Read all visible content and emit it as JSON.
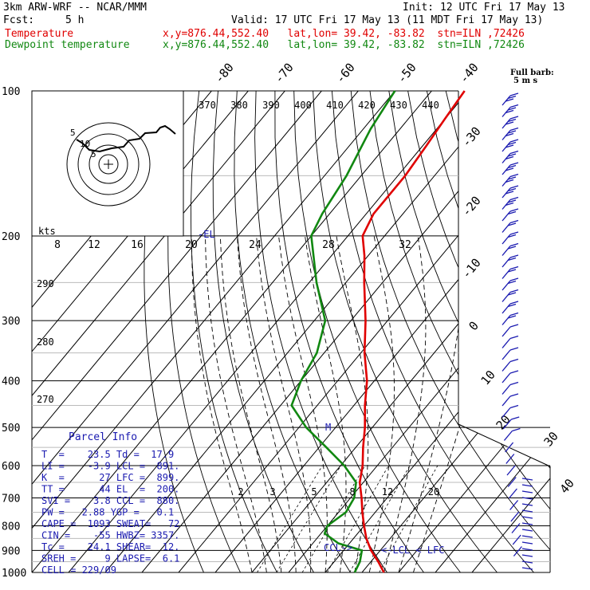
{
  "header": {
    "model": "3km ARW-WRF -- NCAR/MMM",
    "init": "Init: 12 UTC Fri 17 May 13",
    "fcst_label": "Fcst:",
    "fcst_value": "5 h",
    "valid": "Valid: 17 UTC Fri 17 May 13 (11 MDT Fri 17 May 13)",
    "temp_label": "Temperature",
    "temp_info": "x,y=876.44,552.40   lat,lon= 39.42, -83.82  stn=ILN ,72426",
    "dew_label": "Dewpoint temperature",
    "dew_info": "x,y=876.44,552.40   lat,lon= 39.42, -83.82  stn=ILN ,72426"
  },
  "colors": {
    "temperature": "#e00000",
    "dewpoint": "#118811",
    "info": "#1a1ab0",
    "wind": "#1a1ab0"
  },
  "full_barb_label": [
    "Full barb:",
    "5 m s"
  ],
  "chart_data": {
    "type": "skew-t",
    "pressure_levels": [
      100,
      200,
      300,
      400,
      500,
      600,
      700,
      800,
      900,
      1000
    ],
    "temperature_ticks": [
      -80,
      -70,
      -60,
      -50,
      -40,
      -30,
      -20,
      -10,
      0,
      10,
      20,
      30,
      40
    ],
    "theta_labels": [
      370,
      380,
      390,
      400,
      410,
      420,
      430,
      440
    ],
    "mixing_ratio_labels_top": [
      8,
      12,
      16,
      20,
      24,
      28,
      32
    ],
    "mixing_ratio_labels_low": [
      2,
      3,
      5,
      8,
      12,
      20
    ],
    "theta_e_labels": [
      290,
      280,
      270
    ],
    "temperature_profile": [
      {
        "p": 1000,
        "t": 26
      },
      {
        "p": 950,
        "t": 22
      },
      {
        "p": 900,
        "t": 17.5
      },
      {
        "p": 850,
        "t": 13.5
      },
      {
        "p": 800,
        "t": 10
      },
      {
        "p": 750,
        "t": 6.5
      },
      {
        "p": 700,
        "t": 3
      },
      {
        "p": 650,
        "t": -1
      },
      {
        "p": 600,
        "t": -4
      },
      {
        "p": 550,
        "t": -8
      },
      {
        "p": 500,
        "t": -12
      },
      {
        "p": 450,
        "t": -17
      },
      {
        "p": 400,
        "t": -22
      },
      {
        "p": 350,
        "t": -29
      },
      {
        "p": 300,
        "t": -36
      },
      {
        "p": 250,
        "t": -45
      },
      {
        "p": 220,
        "t": -51
      },
      {
        "p": 200,
        "t": -56
      },
      {
        "p": 180,
        "t": -58
      },
      {
        "p": 150,
        "t": -58
      },
      {
        "p": 130,
        "t": -59
      },
      {
        "p": 115,
        "t": -60
      },
      {
        "p": 100,
        "t": -61
      }
    ],
    "dewpoint_profile": [
      {
        "p": 1000,
        "t": 18
      },
      {
        "p": 950,
        "t": 17
      },
      {
        "p": 900,
        "t": 15
      },
      {
        "p": 870,
        "t": 7
      },
      {
        "p": 830,
        "t": 1
      },
      {
        "p": 800,
        "t": 0
      },
      {
        "p": 750,
        "t": 2
      },
      {
        "p": 700,
        "t": 1
      },
      {
        "p": 650,
        "t": -2
      },
      {
        "p": 600,
        "t": -9
      },
      {
        "p": 550,
        "t": -18
      },
      {
        "p": 500,
        "t": -28
      },
      {
        "p": 450,
        "t": -37
      },
      {
        "p": 400,
        "t": -40
      },
      {
        "p": 350,
        "t": -42
      },
      {
        "p": 300,
        "t": -47
      },
      {
        "p": 250,
        "t": -58
      },
      {
        "p": 200,
        "t": -70
      },
      {
        "p": 180,
        "t": -72
      },
      {
        "p": 150,
        "t": -74
      },
      {
        "p": 120,
        "t": -78
      },
      {
        "p": 100,
        "t": -80
      }
    ],
    "markers": [
      {
        "label": "-EL",
        "p": 200
      },
      {
        "label": "CCL",
        "p": 880
      },
      {
        "label": "LCL",
        "p": 891
      },
      {
        "label": "LFC",
        "p": 899
      }
    ],
    "kts_label": "kts"
  },
  "parcel_info": {
    "title": "Parcel Info",
    "rows": [
      "T  =    23.5 Td =  17.9",
      "LI =    -3.9 LCL =  891.",
      "K  =      27 LFC =  899.",
      "TT =      44 EL  =  200.",
      "SVI =    3.8 CCL =  880.",
      "PW =   2.88 YGP =   0.1",
      "CAPE =  1093 SWEAT=   72",
      "CIN =    -55 HWBZ= 3357.",
      "Tc =    24.1 SHEAR=  12.",
      "SREH =     9 LAPSE=  6.1",
      "CELL = 229/09"
    ]
  }
}
